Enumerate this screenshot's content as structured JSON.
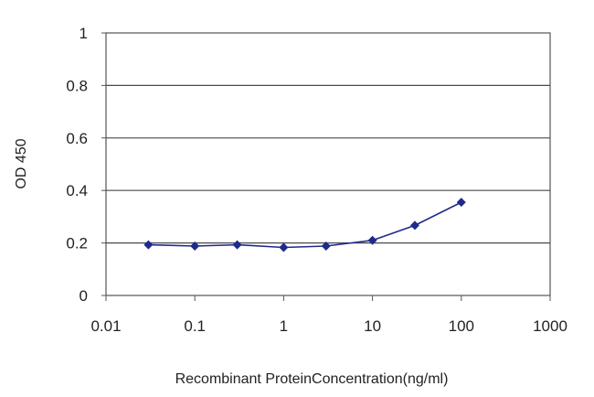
{
  "chart_data": {
    "type": "line",
    "xlabel": "Recombinant ProteinConcentration(ng/ml)",
    "ylabel": "OD 450",
    "xscale": "log",
    "xlim": [
      0.01,
      1000
    ],
    "ylim": [
      0,
      1
    ],
    "xticks": [
      0.01,
      0.1,
      1,
      10,
      100,
      1000
    ],
    "xtick_labels": [
      "0.01",
      "0.1",
      "1",
      "10",
      "100",
      "1000"
    ],
    "yticks": [
      0,
      0.2,
      0.4,
      0.6,
      0.8,
      1
    ],
    "ytick_labels": [
      "0",
      "0.2",
      "0.4",
      "0.6",
      "0.8",
      "1"
    ],
    "grid": "horizontal",
    "legend": "none",
    "series": [
      {
        "color": "#1e2a8c",
        "marker": "diamond",
        "x": [
          0.03,
          0.1,
          0.3,
          1,
          3,
          10,
          30,
          100
        ],
        "y": [
          0.193,
          0.188,
          0.193,
          0.183,
          0.188,
          0.21,
          0.267,
          0.355
        ]
      }
    ]
  }
}
